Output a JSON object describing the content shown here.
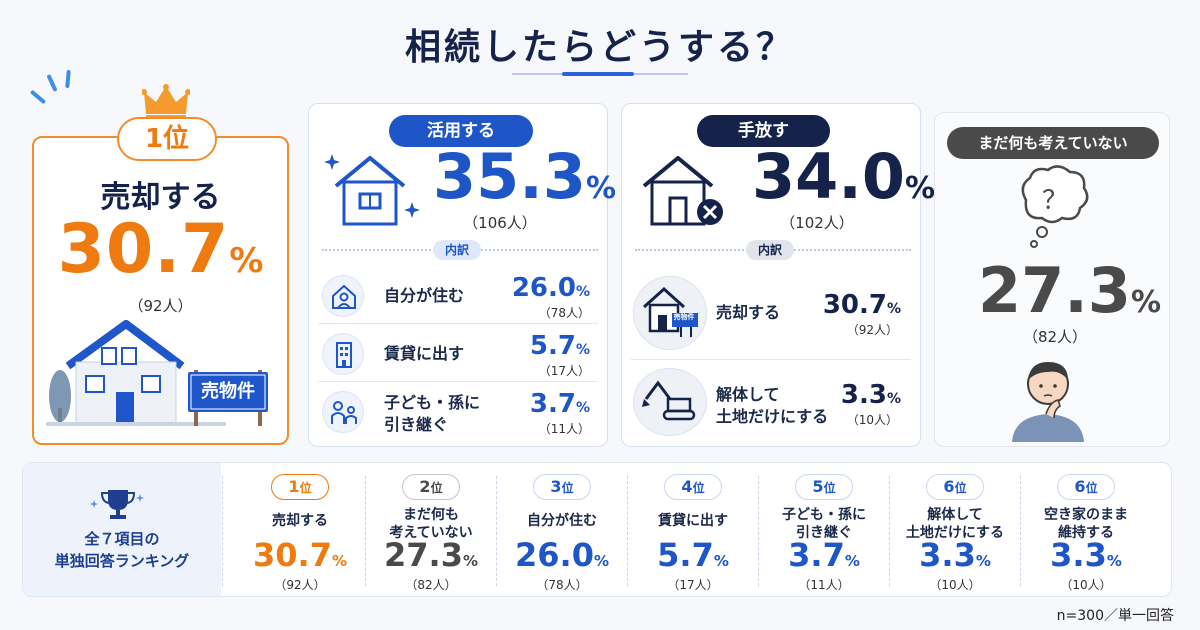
{
  "title": "相続したらどうする？",
  "colors": {
    "orange": "#ef7a10",
    "blue": "#1e56c8",
    "navy": "#15234a",
    "gray": "#4a4a4a"
  },
  "top_card": {
    "rank": "1位",
    "label": "売却する",
    "percent": "30.7",
    "percent_sign": "%",
    "count": "（92人）",
    "sign_text": "売物件"
  },
  "utilize_card": {
    "pill": "活用する",
    "percent": "35.3",
    "percent_sign": "%",
    "count": "（106人）",
    "breakdown_label": "内訳",
    "items": [
      {
        "label": "自分が住む",
        "percent": "26.0",
        "count": "（78人）",
        "icon": "person-house-icon"
      },
      {
        "label": "賃貸に出す",
        "percent": "5.7",
        "count": "（17人）",
        "icon": "apartment-icon"
      },
      {
        "label": "子ども・孫に",
        "label2": "引き継ぐ",
        "percent": "3.7",
        "count": "（11人）",
        "icon": "family-icon"
      }
    ]
  },
  "release_card": {
    "pill": "手放す",
    "percent": "34.0",
    "percent_sign": "%",
    "count": "（102人）",
    "breakdown_label": "内訳",
    "items": [
      {
        "label": "売却する",
        "percent": "30.7",
        "count": "（92人）",
        "icon": "for-sale-house-icon",
        "sign_text": "売物件"
      },
      {
        "label": "解体して",
        "label2": "土地だけにする",
        "percent": "3.3",
        "count": "（10人）",
        "icon": "excavator-icon"
      }
    ]
  },
  "undecided_card": {
    "pill": "まだ何も考えていない",
    "bubble_text": "？",
    "percent": "27.3",
    "percent_sign": "%",
    "count": "（82人）"
  },
  "ranking": {
    "head_line1": "全７項目の",
    "head_line2": "単独回答ランキング",
    "items": [
      {
        "rank": "1",
        "unit": "位",
        "label": "売却する",
        "label2": "",
        "percent": "30.7",
        "count": "（92人）",
        "color": "#ef7a10"
      },
      {
        "rank": "2",
        "unit": "位",
        "label": "まだ何も",
        "label2": "考えていない",
        "percent": "27.3",
        "count": "（82人）",
        "color": "#4a4a4a"
      },
      {
        "rank": "3",
        "unit": "位",
        "label": "自分が住む",
        "label2": "",
        "percent": "26.0",
        "count": "（78人）",
        "color": "#1e56c8"
      },
      {
        "rank": "4",
        "unit": "位",
        "label": "賃貸に出す",
        "label2": "",
        "percent": "5.7",
        "count": "（17人）",
        "color": "#1e56c8"
      },
      {
        "rank": "5",
        "unit": "位",
        "label": "子ども・孫に",
        "label2": "引き継ぐ",
        "percent": "3.7",
        "count": "（11人）",
        "color": "#1e56c8"
      },
      {
        "rank": "6",
        "unit": "位",
        "label": "解体して",
        "label2": "土地だけにする",
        "percent": "3.3",
        "count": "（10人）",
        "color": "#1e56c8"
      },
      {
        "rank": "6",
        "unit": "位",
        "label": "空き家のまま",
        "label2": "維持する",
        "percent": "3.3",
        "count": "（10人）",
        "color": "#1e56c8"
      }
    ]
  },
  "footnote": "n=300／単一回答"
}
